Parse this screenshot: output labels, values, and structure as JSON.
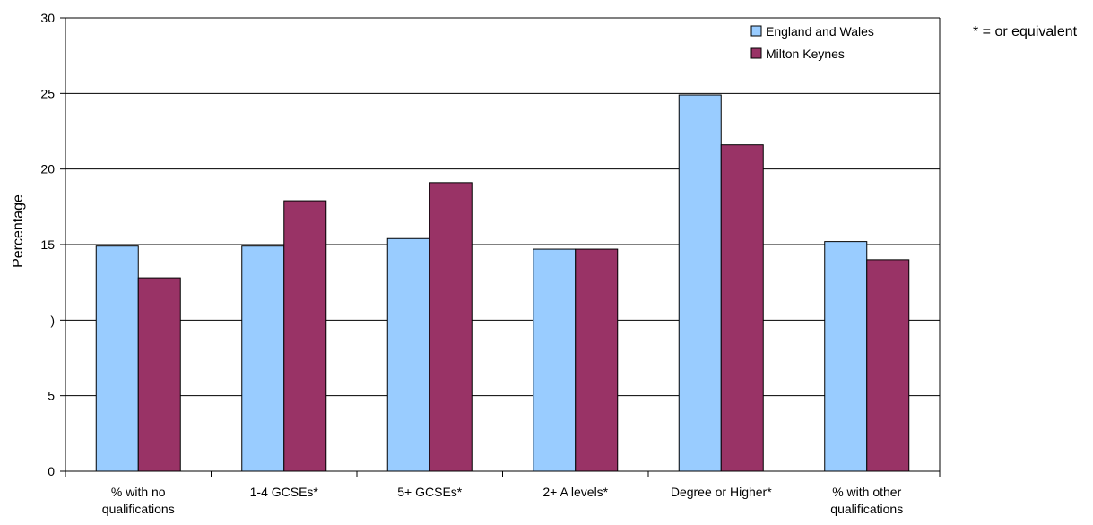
{
  "chart_data": {
    "type": "bar",
    "title": "",
    "xlabel": "",
    "ylabel": "Percentage",
    "ylim": [
      0,
      30
    ],
    "yticks": [
      0,
      5,
      10,
      15,
      20,
      25,
      30
    ],
    "ytick_labels": [
      "0",
      "5",
      ")",
      "15",
      "20",
      "25",
      "30"
    ],
    "grid": true,
    "legend_position": "top-right",
    "categories": [
      [
        "% with no",
        "qualifications"
      ],
      [
        "1-4 GCSEs*"
      ],
      [
        "5+ GCSEs*"
      ],
      [
        "2+ A levels*"
      ],
      [
        "Degree or Higher*"
      ],
      [
        "% with other",
        "qualifications"
      ]
    ],
    "series": [
      {
        "name": "England and Wales",
        "color": "#99ccff",
        "values": [
          14.9,
          14.9,
          15.4,
          14.7,
          24.9,
          15.2
        ]
      },
      {
        "name": "Milton Keynes",
        "color": "#993366",
        "values": [
          12.8,
          17.9,
          19.1,
          14.7,
          21.6,
          14.0
        ]
      }
    ],
    "annotation": "* = or equivalent"
  }
}
